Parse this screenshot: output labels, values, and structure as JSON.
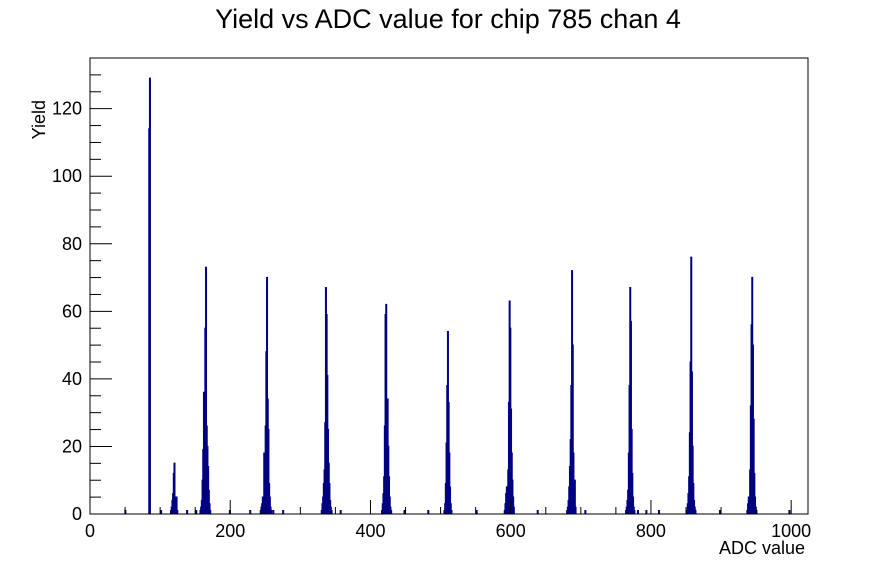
{
  "chart_data": {
    "type": "histogram",
    "title": "Yield vs ADC value for chip 785 chan 4",
    "xlabel": "ADC value",
    "ylabel": "Yield",
    "xlim": [
      0,
      1024
    ],
    "ylim": [
      0,
      135
    ],
    "x_ticks": [
      0,
      200,
      400,
      600,
      800,
      1000
    ],
    "y_ticks": [
      0,
      20,
      40,
      60,
      80,
      100,
      120
    ],
    "grid": false,
    "line_color": "#000080",
    "bin_width": 1,
    "bins": [
      [
        50,
        1
      ],
      [
        83,
        0
      ],
      [
        84,
        114
      ],
      [
        85,
        129
      ],
      [
        86,
        0
      ],
      [
        101,
        1
      ],
      [
        115,
        1
      ],
      [
        116,
        2
      ],
      [
        117,
        4
      ],
      [
        118,
        6
      ],
      [
        119,
        12
      ],
      [
        120,
        15
      ],
      [
        121,
        5
      ],
      [
        122,
        3
      ],
      [
        123,
        5
      ],
      [
        124,
        1
      ],
      [
        138,
        1
      ],
      [
        151,
        1
      ],
      [
        157,
        1
      ],
      [
        158,
        2
      ],
      [
        159,
        4
      ],
      [
        160,
        10
      ],
      [
        161,
        19
      ],
      [
        162,
        36
      ],
      [
        163,
        28
      ],
      [
        164,
        55
      ],
      [
        165,
        73
      ],
      [
        166,
        26
      ],
      [
        167,
        20
      ],
      [
        168,
        14
      ],
      [
        169,
        7
      ],
      [
        170,
        3
      ],
      [
        171,
        1
      ],
      [
        199,
        1
      ],
      [
        228,
        1
      ],
      [
        243,
        1
      ],
      [
        244,
        2
      ],
      [
        245,
        3
      ],
      [
        246,
        5
      ],
      [
        247,
        2
      ],
      [
        248,
        18
      ],
      [
        249,
        12
      ],
      [
        250,
        26
      ],
      [
        251,
        48
      ],
      [
        252,
        70
      ],
      [
        253,
        34
      ],
      [
        254,
        25
      ],
      [
        255,
        9
      ],
      [
        256,
        5
      ],
      [
        257,
        2
      ],
      [
        258,
        1
      ],
      [
        261,
        1
      ],
      [
        275,
        1
      ],
      [
        330,
        1
      ],
      [
        331,
        3
      ],
      [
        332,
        5
      ],
      [
        333,
        9
      ],
      [
        334,
        13
      ],
      [
        335,
        27
      ],
      [
        336,
        67
      ],
      [
        337,
        59
      ],
      [
        338,
        41
      ],
      [
        339,
        25
      ],
      [
        340,
        15
      ],
      [
        341,
        9
      ],
      [
        342,
        4
      ],
      [
        343,
        2
      ],
      [
        344,
        1
      ],
      [
        357,
        1
      ],
      [
        416,
        1
      ],
      [
        417,
        3
      ],
      [
        418,
        6
      ],
      [
        419,
        11
      ],
      [
        420,
        26
      ],
      [
        421,
        59
      ],
      [
        422,
        62
      ],
      [
        423,
        24
      ],
      [
        424,
        34
      ],
      [
        425,
        20
      ],
      [
        426,
        11
      ],
      [
        427,
        5
      ],
      [
        428,
        2
      ],
      [
        429,
        1
      ],
      [
        448,
        1
      ],
      [
        482,
        1
      ],
      [
        505,
        1
      ],
      [
        506,
        3
      ],
      [
        507,
        9
      ],
      [
        508,
        21
      ],
      [
        509,
        38
      ],
      [
        510,
        54
      ],
      [
        511,
        33
      ],
      [
        512,
        18
      ],
      [
        513,
        8
      ],
      [
        514,
        3
      ],
      [
        515,
        1
      ],
      [
        551,
        1
      ],
      [
        591,
        1
      ],
      [
        592,
        3
      ],
      [
        593,
        6
      ],
      [
        594,
        8
      ],
      [
        595,
        4
      ],
      [
        596,
        13
      ],
      [
        597,
        33
      ],
      [
        598,
        63
      ],
      [
        599,
        55
      ],
      [
        600,
        31
      ],
      [
        601,
        18
      ],
      [
        602,
        10
      ],
      [
        603,
        5
      ],
      [
        604,
        2
      ],
      [
        638,
        1
      ],
      [
        680,
        1
      ],
      [
        681,
        2
      ],
      [
        682,
        4
      ],
      [
        683,
        8
      ],
      [
        684,
        14
      ],
      [
        685,
        22
      ],
      [
        686,
        38
      ],
      [
        687,
        72
      ],
      [
        688,
        50
      ],
      [
        689,
        18
      ],
      [
        690,
        6
      ],
      [
        691,
        10
      ],
      [
        692,
        2
      ],
      [
        706,
        1
      ],
      [
        764,
        1
      ],
      [
        765,
        2
      ],
      [
        766,
        4
      ],
      [
        767,
        7
      ],
      [
        768,
        18
      ],
      [
        769,
        38
      ],
      [
        770,
        67
      ],
      [
        771,
        57
      ],
      [
        772,
        25
      ],
      [
        773,
        12
      ],
      [
        774,
        5
      ],
      [
        775,
        2
      ],
      [
        776,
        1
      ],
      [
        781,
        1
      ],
      [
        793,
        1
      ],
      [
        811,
        1
      ],
      [
        851,
        1
      ],
      [
        852,
        3
      ],
      [
        853,
        6
      ],
      [
        854,
        11
      ],
      [
        855,
        24
      ],
      [
        856,
        45
      ],
      [
        857,
        76
      ],
      [
        858,
        42
      ],
      [
        859,
        20
      ],
      [
        860,
        9
      ],
      [
        861,
        4
      ],
      [
        862,
        2
      ],
      [
        863,
        1
      ],
      [
        898,
        1
      ],
      [
        937,
        1
      ],
      [
        938,
        3
      ],
      [
        939,
        5
      ],
      [
        940,
        2
      ],
      [
        941,
        13
      ],
      [
        942,
        32
      ],
      [
        943,
        56
      ],
      [
        944,
        70
      ],
      [
        945,
        50
      ],
      [
        946,
        28
      ],
      [
        947,
        12
      ],
      [
        948,
        5
      ],
      [
        949,
        2
      ],
      [
        950,
        1
      ],
      [
        997,
        1
      ]
    ]
  }
}
